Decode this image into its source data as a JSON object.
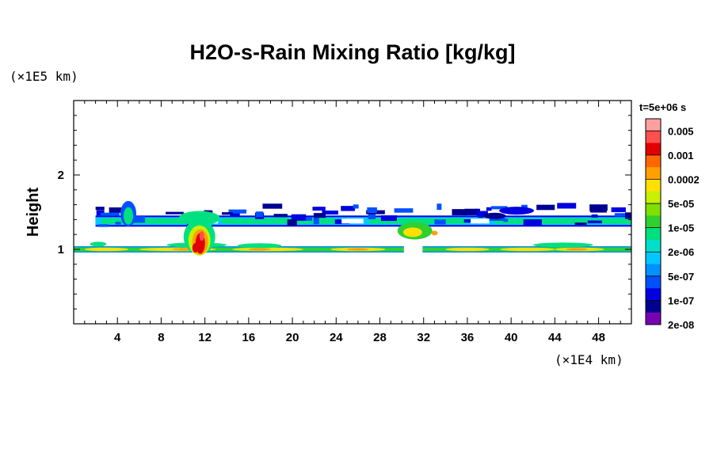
{
  "chart_data": {
    "type": "heatmap",
    "title": "H2O-s-Rain Mixing Ratio [kg/kg]",
    "ylabel": "Height",
    "x_unit_label": "(×1E4 km)",
    "y_unit_label": "(×1E5 km)",
    "time_label": "t=5e+06 s",
    "xlim": [
      0,
      51
    ],
    "ylim": [
      0,
      3
    ],
    "x_ticks": [
      "4",
      "8",
      "12",
      "16",
      "20",
      "24",
      "28",
      "32",
      "36",
      "40",
      "44",
      "48"
    ],
    "y_ticks": [
      "1",
      "2"
    ],
    "colorbar": {
      "labels": [
        "0.005",
        "0.001",
        "0.0002",
        "5e-05",
        "1e-05",
        "2e-06",
        "5e-07",
        "1e-07",
        "2e-08"
      ],
      "colors": [
        "#ffa0a0",
        "#ff5050",
        "#e00000",
        "#ff6600",
        "#ffa000",
        "#ffe000",
        "#c8f000",
        "#80e000",
        "#30d030",
        "#00e080",
        "#00e0c8",
        "#00c8ff",
        "#0090ff",
        "#0050ff",
        "#0000e0",
        "#000090",
        "#7800b4"
      ]
    },
    "layers": [
      {
        "name": "lower band",
        "y_center": 1.0,
        "level": "2e-06 to 5e-05",
        "x_range": [
          0,
          51
        ]
      },
      {
        "name": "upper band",
        "y_center": 1.35,
        "level": "2e-08 to 1e-05",
        "x_range": [
          2,
          51
        ]
      },
      {
        "name": "convective core",
        "x": 11.5,
        "y_range": [
          0.95,
          1.35
        ],
        "level": "up to 0.001"
      }
    ]
  }
}
